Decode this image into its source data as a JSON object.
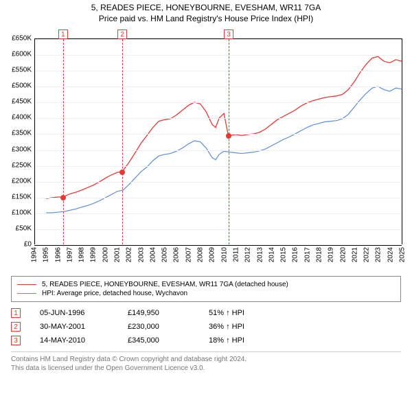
{
  "title": {
    "line1": "5, READES PIECE, HONEYBOURNE, EVESHAM, WR11 7GA",
    "line2": "Price paid vs. HM Land Registry's House Price Index (HPI)"
  },
  "chart": {
    "type": "line",
    "background_color": "#ffffff",
    "grid_color": "#eeeeee",
    "axis_color": "#000000",
    "xlim": [
      1994,
      2025
    ],
    "ylim": [
      0,
      650000
    ],
    "ytick_step": 50000,
    "ytick_labels": [
      "£0",
      "£50K",
      "£100K",
      "£150K",
      "£200K",
      "£250K",
      "£300K",
      "£350K",
      "£400K",
      "£450K",
      "£500K",
      "£550K",
      "£600K",
      "£650K"
    ],
    "xtick_step": 1,
    "xtick_labels": [
      "1994",
      "1995",
      "1996",
      "1997",
      "1998",
      "1999",
      "2000",
      "2001",
      "2002",
      "2003",
      "2004",
      "2005",
      "2006",
      "2007",
      "2008",
      "2009",
      "2010",
      "2011",
      "2012",
      "2013",
      "2014",
      "2015",
      "2016",
      "2017",
      "2018",
      "2019",
      "2020",
      "2021",
      "2022",
      "2023",
      "2024",
      "2025"
    ],
    "label_fontsize": 10,
    "title_fontsize": 12,
    "series": [
      {
        "name": "property",
        "label": "5, READES PIECE, HONEYBOURNE, EVESHAM, WR11 7GA (detached house)",
        "color": "#e53935",
        "line_width": 1.3,
        "data": [
          [
            1995.0,
            145000
          ],
          [
            1995.5,
            148000
          ],
          [
            1996.0,
            150000
          ],
          [
            1996.42,
            149950
          ],
          [
            1997.0,
            160000
          ],
          [
            1997.5,
            165000
          ],
          [
            1998.0,
            172000
          ],
          [
            1998.5,
            180000
          ],
          [
            1999.0,
            188000
          ],
          [
            1999.5,
            198000
          ],
          [
            2000.0,
            210000
          ],
          [
            2000.5,
            220000
          ],
          [
            2001.0,
            228000
          ],
          [
            2001.41,
            230000
          ],
          [
            2002.0,
            260000
          ],
          [
            2002.5,
            290000
          ],
          [
            2003.0,
            320000
          ],
          [
            2003.5,
            345000
          ],
          [
            2004.0,
            370000
          ],
          [
            2004.5,
            390000
          ],
          [
            2005.0,
            395000
          ],
          [
            2005.5,
            398000
          ],
          [
            2006.0,
            410000
          ],
          [
            2006.5,
            425000
          ],
          [
            2007.0,
            440000
          ],
          [
            2007.5,
            450000
          ],
          [
            2008.0,
            445000
          ],
          [
            2008.5,
            420000
          ],
          [
            2009.0,
            380000
          ],
          [
            2009.3,
            370000
          ],
          [
            2009.6,
            400000
          ],
          [
            2010.0,
            415000
          ],
          [
            2010.37,
            345000
          ],
          [
            2010.5,
            345000
          ],
          [
            2011.0,
            348000
          ],
          [
            2011.5,
            345000
          ],
          [
            2012.0,
            348000
          ],
          [
            2012.5,
            350000
          ],
          [
            2013.0,
            355000
          ],
          [
            2013.5,
            365000
          ],
          [
            2014.0,
            380000
          ],
          [
            2014.5,
            395000
          ],
          [
            2015.0,
            405000
          ],
          [
            2015.5,
            415000
          ],
          [
            2016.0,
            425000
          ],
          [
            2016.5,
            438000
          ],
          [
            2017.0,
            448000
          ],
          [
            2017.5,
            455000
          ],
          [
            2018.0,
            460000
          ],
          [
            2018.5,
            465000
          ],
          [
            2019.0,
            468000
          ],
          [
            2019.5,
            470000
          ],
          [
            2020.0,
            475000
          ],
          [
            2020.5,
            490000
          ],
          [
            2021.0,
            515000
          ],
          [
            2021.5,
            545000
          ],
          [
            2022.0,
            570000
          ],
          [
            2022.5,
            590000
          ],
          [
            2023.0,
            595000
          ],
          [
            2023.5,
            580000
          ],
          [
            2024.0,
            575000
          ],
          [
            2024.5,
            585000
          ],
          [
            2025.0,
            580000
          ]
        ]
      },
      {
        "name": "hpi",
        "label": "HPI: Average price, detached house, Wychavon",
        "color": "#5b8fd6",
        "line_width": 1.2,
        "data": [
          [
            1995.0,
            100000
          ],
          [
            1995.5,
            100000
          ],
          [
            1996.0,
            102000
          ],
          [
            1996.5,
            104000
          ],
          [
            1997.0,
            108000
          ],
          [
            1997.5,
            112000
          ],
          [
            1998.0,
            118000
          ],
          [
            1998.5,
            123000
          ],
          [
            1999.0,
            130000
          ],
          [
            1999.5,
            138000
          ],
          [
            2000.0,
            148000
          ],
          [
            2000.5,
            158000
          ],
          [
            2001.0,
            168000
          ],
          [
            2001.5,
            172000
          ],
          [
            2002.0,
            190000
          ],
          [
            2002.5,
            210000
          ],
          [
            2003.0,
            230000
          ],
          [
            2003.5,
            245000
          ],
          [
            2004.0,
            265000
          ],
          [
            2004.5,
            280000
          ],
          [
            2005.0,
            285000
          ],
          [
            2005.5,
            288000
          ],
          [
            2006.0,
            295000
          ],
          [
            2006.5,
            305000
          ],
          [
            2007.0,
            318000
          ],
          [
            2007.5,
            328000
          ],
          [
            2008.0,
            325000
          ],
          [
            2008.5,
            305000
          ],
          [
            2009.0,
            275000
          ],
          [
            2009.3,
            268000
          ],
          [
            2009.6,
            285000
          ],
          [
            2010.0,
            295000
          ],
          [
            2010.5,
            292000
          ],
          [
            2011.0,
            290000
          ],
          [
            2011.5,
            288000
          ],
          [
            2012.0,
            290000
          ],
          [
            2012.5,
            292000
          ],
          [
            2013.0,
            296000
          ],
          [
            2013.5,
            302000
          ],
          [
            2014.0,
            312000
          ],
          [
            2014.5,
            322000
          ],
          [
            2015.0,
            332000
          ],
          [
            2015.5,
            340000
          ],
          [
            2016.0,
            350000
          ],
          [
            2016.5,
            360000
          ],
          [
            2017.0,
            370000
          ],
          [
            2017.5,
            378000
          ],
          [
            2018.0,
            383000
          ],
          [
            2018.5,
            388000
          ],
          [
            2019.0,
            390000
          ],
          [
            2019.5,
            392000
          ],
          [
            2020.0,
            398000
          ],
          [
            2020.5,
            412000
          ],
          [
            2021.0,
            435000
          ],
          [
            2021.5,
            458000
          ],
          [
            2022.0,
            478000
          ],
          [
            2022.5,
            495000
          ],
          [
            2023.0,
            500000
          ],
          [
            2023.5,
            490000
          ],
          [
            2024.0,
            485000
          ],
          [
            2024.5,
            495000
          ],
          [
            2025.0,
            492000
          ]
        ]
      }
    ],
    "sale_markers": [
      {
        "n": "1",
        "year": 1996.42,
        "price": 149950
      },
      {
        "n": "2",
        "year": 2001.41,
        "price": 230000
      },
      {
        "n": "3",
        "year": 2010.37,
        "price": 345000
      }
    ],
    "marker_color": "#e53935",
    "marker_box_top_offset": -14
  },
  "legend": {
    "border_color": "#888888",
    "fontsize": 10,
    "items": [
      {
        "color": "#e53935",
        "label": "5, READES PIECE, HONEYBOURNE, EVESHAM, WR11 7GA (detached house)"
      },
      {
        "color": "#5b8fd6",
        "label": "HPI: Average price, detached house, Wychavon"
      }
    ]
  },
  "sales_table": {
    "fontsize": 11,
    "arrow": "↑",
    "hpi_suffix": "HPI",
    "rows": [
      {
        "n": "1",
        "date": "05-JUN-1996",
        "price": "£149,950",
        "pct": "51%"
      },
      {
        "n": "2",
        "date": "30-MAY-2001",
        "price": "£230,000",
        "pct": "36%"
      },
      {
        "n": "3",
        "date": "14-MAY-2010",
        "price": "£345,000",
        "pct": "18%"
      }
    ]
  },
  "footer": {
    "line1": "Contains HM Land Registry data © Crown copyright and database right 2024.",
    "line2": "This data is licensed under the Open Government Licence v3.0."
  }
}
